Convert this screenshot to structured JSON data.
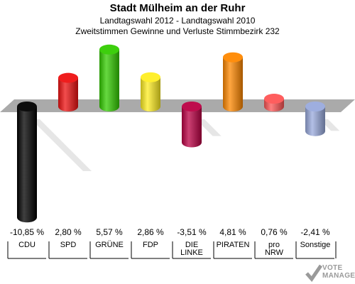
{
  "header": {
    "title": "Stadt Mülheim an der Ruhr",
    "subtitle1": "Landtagswahl 2012 - Landtagswahl 2010",
    "subtitle2": "Zweitstimmen Gewinne und Verluste Stimmbezirk 232"
  },
  "logo": {
    "line1": "VOTE",
    "line2": "MANAGER"
  },
  "chart_data": {
    "type": "bar",
    "title": "Stadt Mülheim an der Ruhr",
    "subtitle": "Landtagswahl 2012 - Landtagswahl 2010 / Zweitstimmen Gewinne und Verluste Stimmbezirk 232",
    "categories": [
      [
        "CDU"
      ],
      [
        "SPD"
      ],
      [
        "GRÜNE"
      ],
      [
        "FDP"
      ],
      [
        "DIE",
        "LINKE"
      ],
      [
        "PIRATEN"
      ],
      [
        "pro",
        "NRW"
      ],
      [
        "Sonstige"
      ]
    ],
    "values": [
      -10.85,
      2.8,
      5.57,
      2.86,
      -3.51,
      4.81,
      0.76,
      -2.41
    ],
    "labels": [
      "-10,85 %",
      "2,80 %",
      "5,57 %",
      "2,86 %",
      "-3,51 %",
      "4,81 %",
      "0,76 %",
      "-2,41 %"
    ],
    "colors": [
      "#000000",
      "#ee1111",
      "#33cc00",
      "#ffee22",
      "#bb0044",
      "#ff8800",
      "#ff5555",
      "#99aadd"
    ],
    "unit": "%",
    "grid": false,
    "legend": "none"
  }
}
